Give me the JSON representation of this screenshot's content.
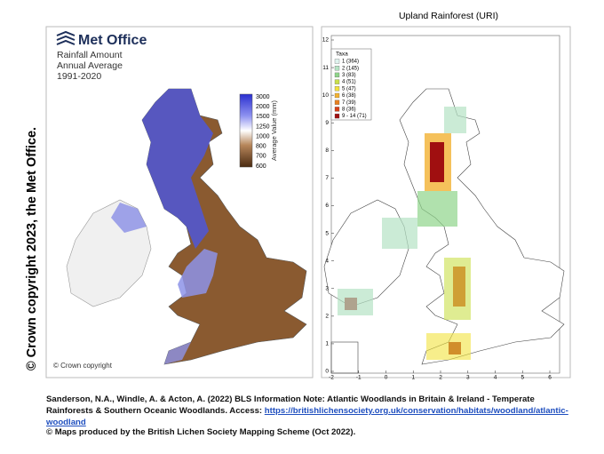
{
  "side_note": "© Crown copyright 2023, the Met Office.",
  "rainfall_map": {
    "brand": "Met Office",
    "title_lines": [
      "Rainfall Amount",
      "Annual Average",
      "1991-2020"
    ],
    "legend_title": "Average Value (mm)",
    "legend_labels": [
      "3000",
      "2000",
      "1500",
      "1250",
      "1000",
      "800",
      "700",
      "600"
    ],
    "copyright": "© Crown copyright"
  },
  "rainforest_map": {
    "title": "Upland Rainforest (URI)",
    "legend_title": "Taxa",
    "legend": [
      {
        "label": "1 (364)",
        "color": "#dff3ee"
      },
      {
        "label": "2 (145)",
        "color": "#b5e3c4"
      },
      {
        "label": "3 (83)",
        "color": "#8fd48a"
      },
      {
        "label": "4 (51)",
        "color": "#c9e04a"
      },
      {
        "label": "5 (47)",
        "color": "#f2e23e"
      },
      {
        "label": "6 (38)",
        "color": "#f2b232"
      },
      {
        "label": "7 (39)",
        "color": "#e8801f"
      },
      {
        "label": "8 (36)",
        "color": "#d84018"
      },
      {
        "label": "9 - 14 (71)",
        "color": "#a00f10"
      }
    ],
    "xticks": [
      -2,
      -1,
      0,
      1,
      2,
      3,
      4,
      5,
      6
    ],
    "yticks": [
      0,
      1,
      2,
      3,
      4,
      5,
      6,
      7,
      8,
      9,
      10,
      11,
      12
    ]
  },
  "citation": {
    "text": "Sanderson, N.A., Windle, A. & Acton, A. (2022) BLS Information Note: Atlantic Woodlands in Britain & Ireland - Temperate Rainforests & Southern Oceanic Woodlands. Access: ",
    "link": "https://britishlichensociety.org.uk/conservation/habitats/woodland/atlantic-woodland"
  },
  "footer": "© Maps produced by the British Lichen Society Mapping Scheme (Oct 2022)."
}
